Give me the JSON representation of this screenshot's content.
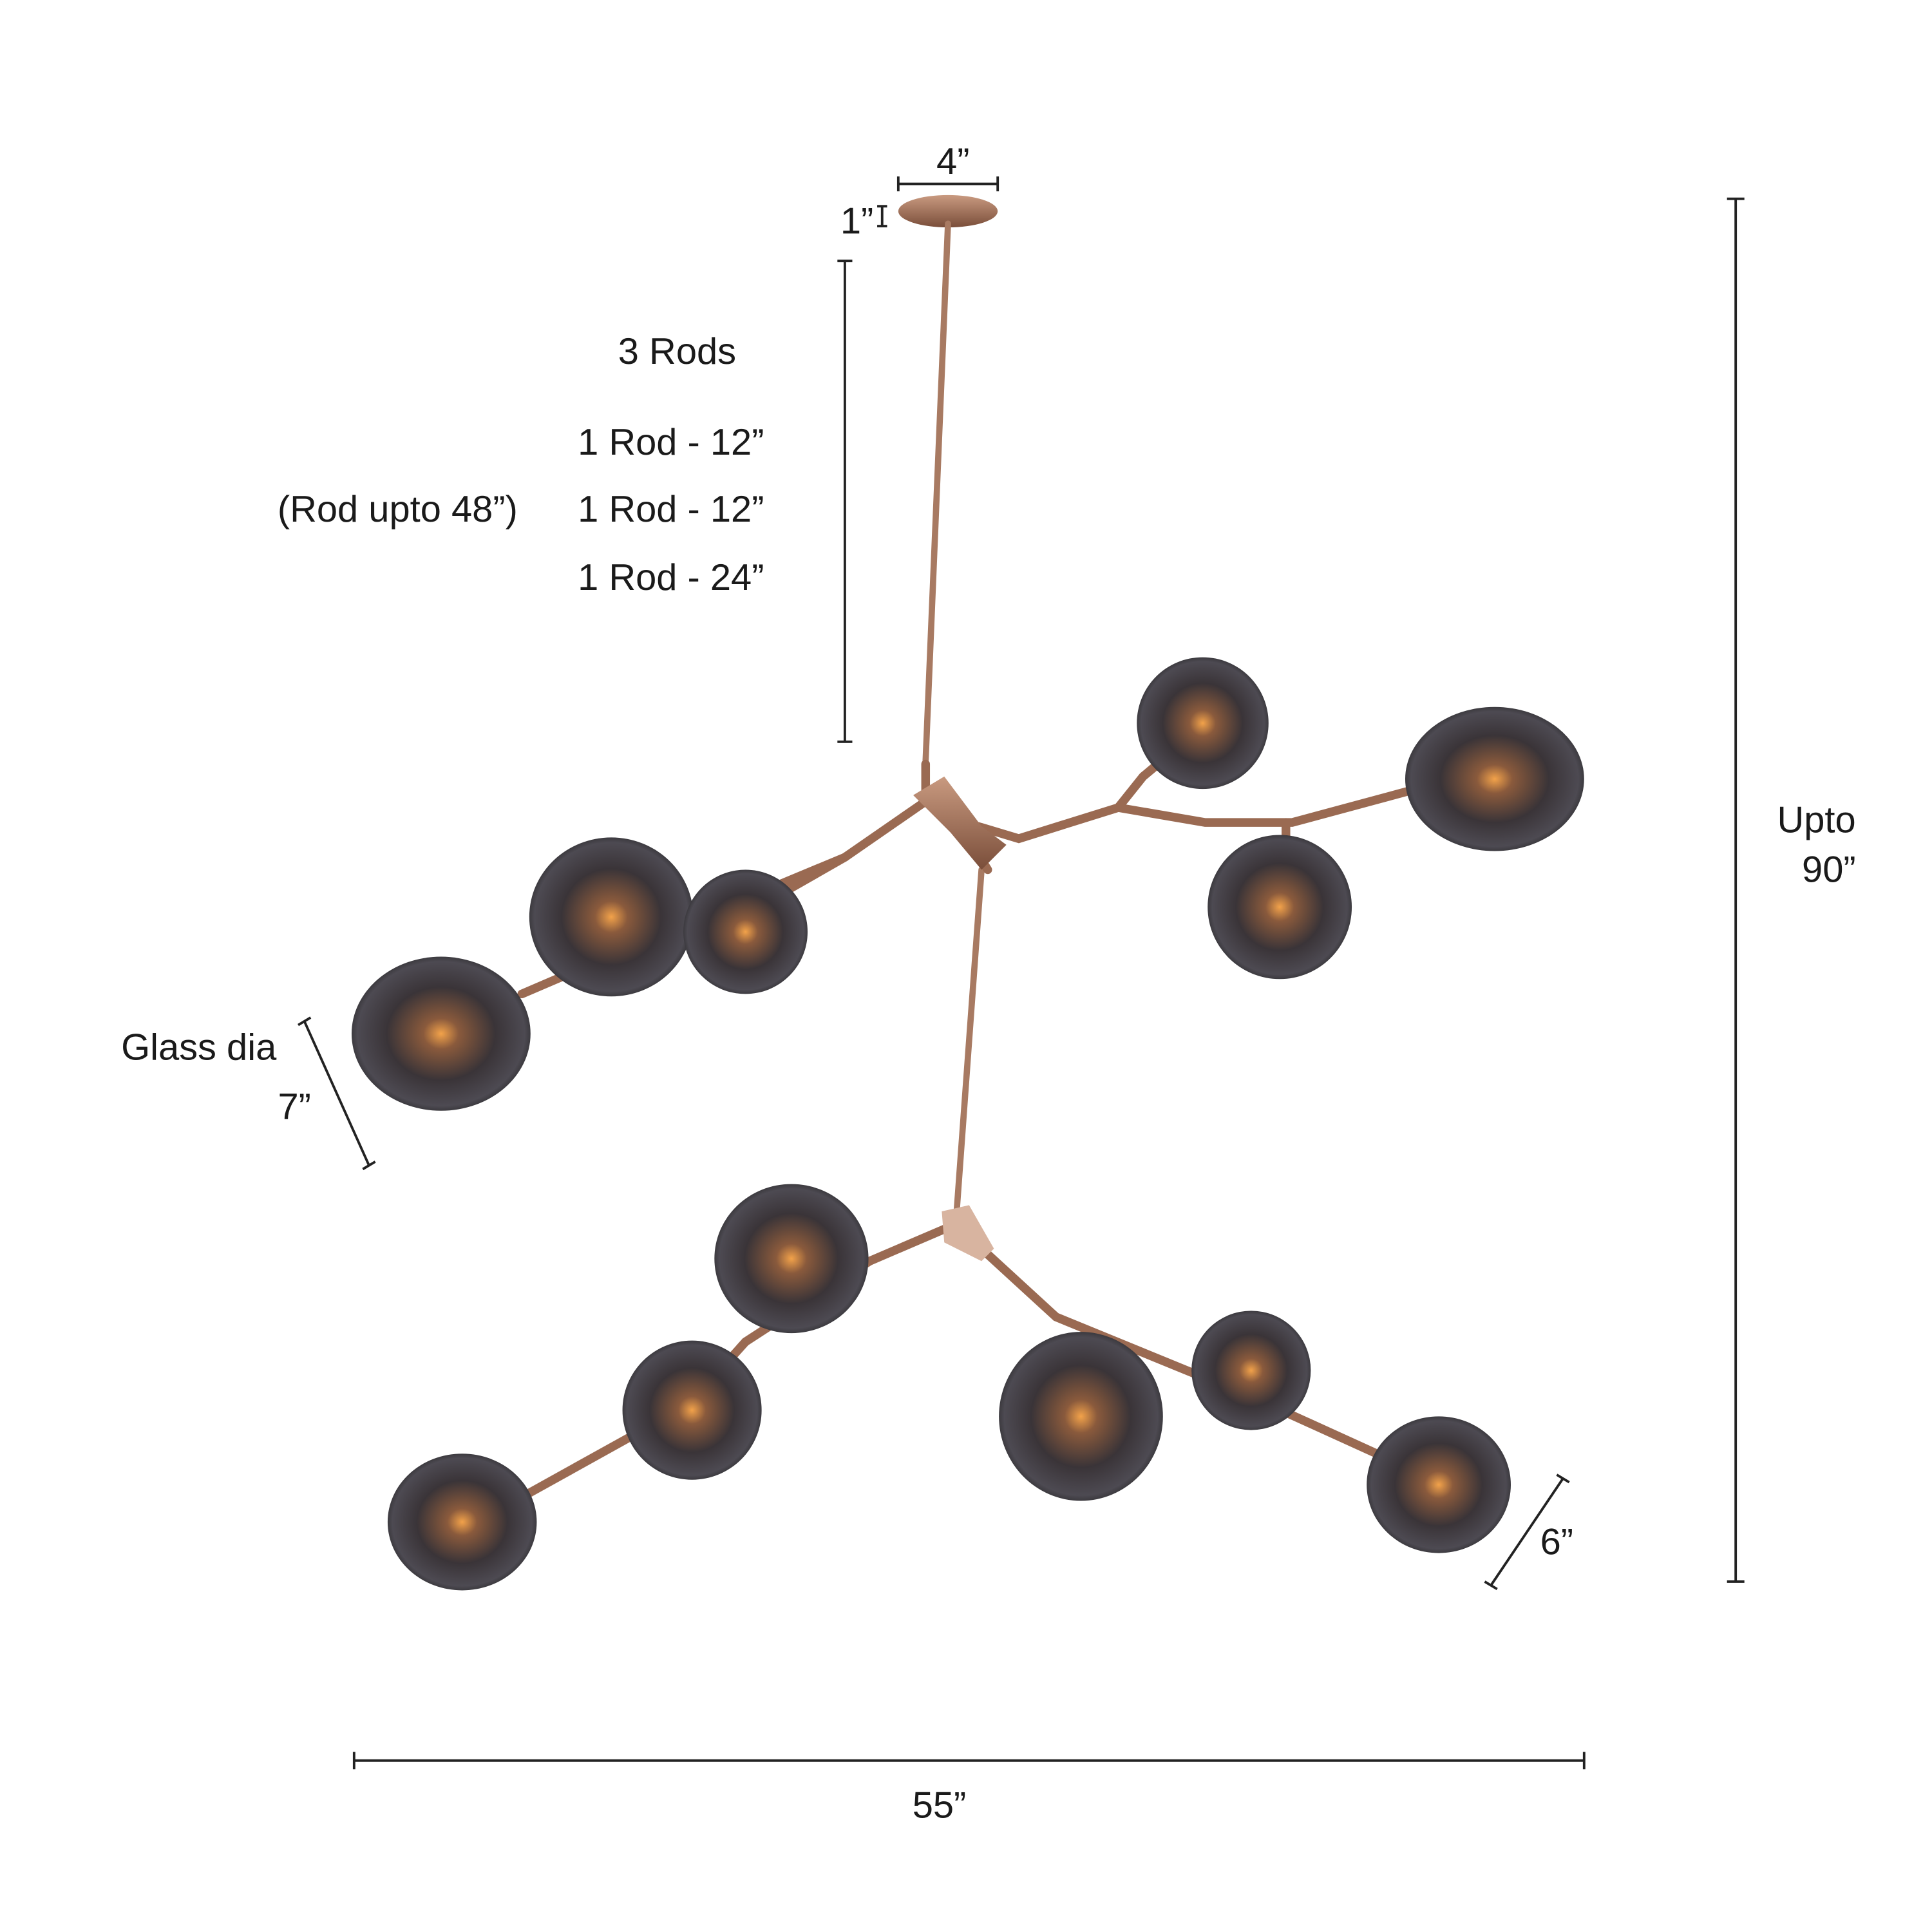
{
  "dimensions": {
    "canopy_width": "4”",
    "canopy_height": "1”",
    "overall_width": "55”",
    "height_label": "Upto",
    "height_value": "90”",
    "glass_large_label": "Glass dia",
    "glass_large_value": "7”",
    "glass_small_value": "6”"
  },
  "rods": {
    "title": "3 Rods",
    "note": "(Rod upto 48”)",
    "items": [
      "1 Rod - 12”",
      "1 Rod - 12”",
      "1 Rod - 24”"
    ]
  }
}
